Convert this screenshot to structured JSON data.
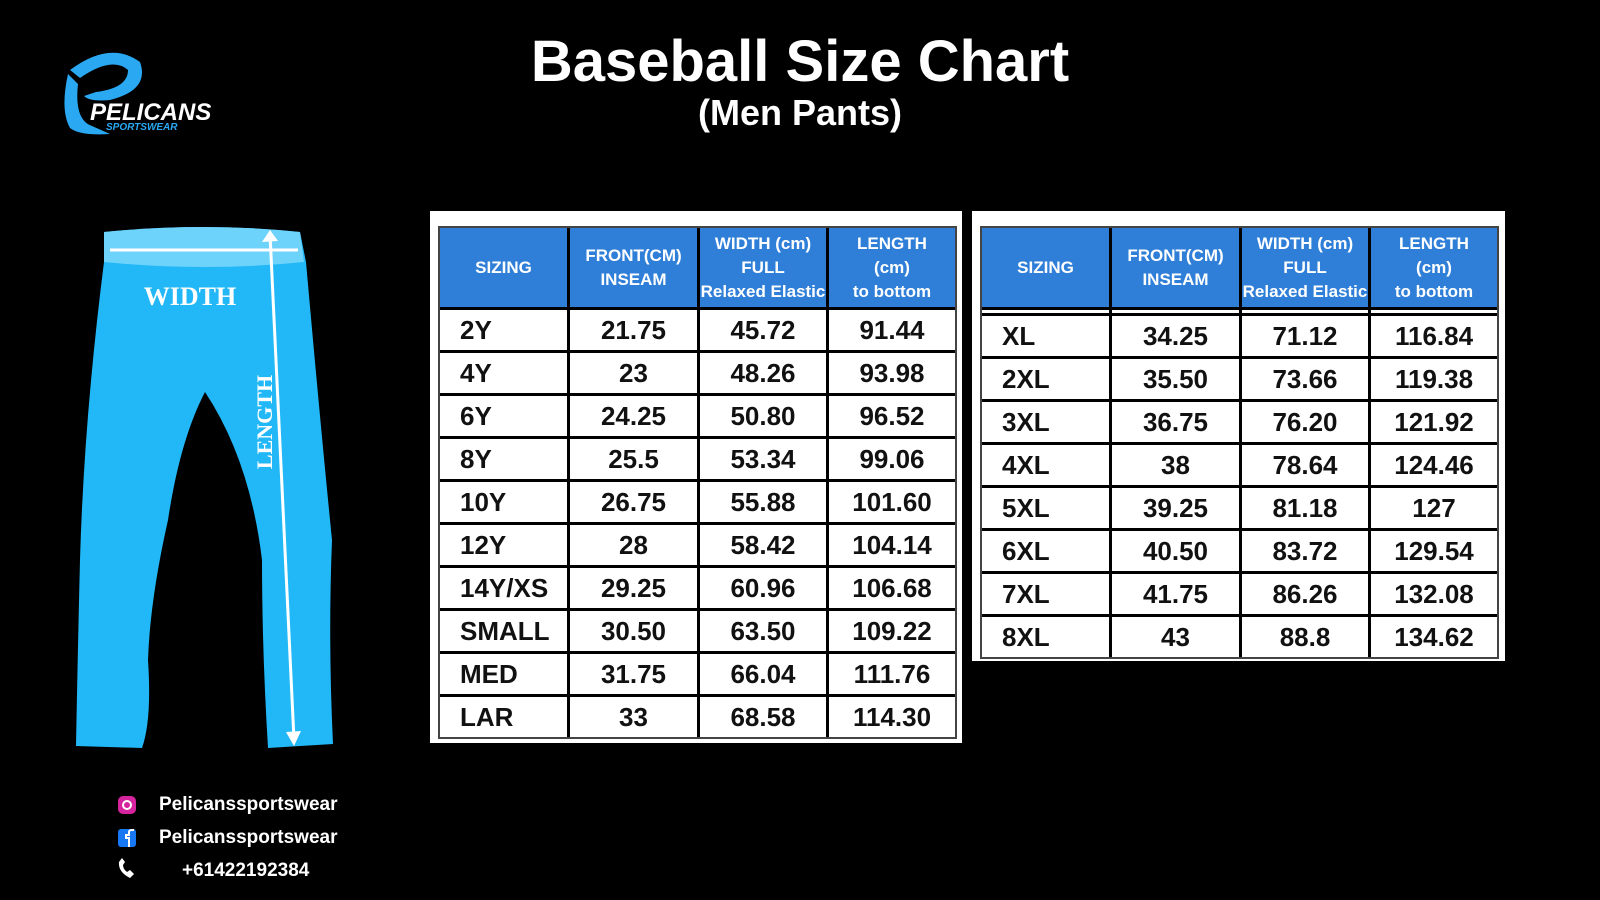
{
  "logo": {
    "name": "PELICANS",
    "tagline": "SPORTSWEAR"
  },
  "header": {
    "title": "Baseball Size Chart",
    "subtitle": "(Men Pants)"
  },
  "illustration": {
    "width_label": "WIDTH",
    "length_label": "LENGTH"
  },
  "tables": [
    {
      "columns": [
        [
          "SIZING"
        ],
        [
          "FRONT(CM)",
          "INSEAM"
        ],
        [
          "WIDTH (cm)",
          "FULL",
          "Relaxed Elastic"
        ],
        [
          "LENGTH",
          "(cm)",
          "to bottom"
        ]
      ],
      "rows": [
        [
          "2Y",
          "21.75",
          "45.72",
          "91.44"
        ],
        [
          "4Y",
          "23",
          "48.26",
          "93.98"
        ],
        [
          "6Y",
          "24.25",
          "50.80",
          "96.52"
        ],
        [
          "8Y",
          "25.5",
          "53.34",
          "99.06"
        ],
        [
          "10Y",
          "26.75",
          "55.88",
          "101.60"
        ],
        [
          "12Y",
          "28",
          "58.42",
          "104.14"
        ],
        [
          "14Y/XS",
          "29.25",
          "60.96",
          "106.68"
        ],
        [
          "SMALL",
          "30.50",
          "63.50",
          "109.22"
        ],
        [
          "MED",
          "31.75",
          "66.04",
          "111.76"
        ],
        [
          "LAR",
          "33",
          "68.58",
          "114.30"
        ]
      ]
    },
    {
      "columns": [
        [
          "SIZING"
        ],
        [
          "FRONT(CM)",
          "INSEAM"
        ],
        [
          "WIDTH (cm)",
          "FULL",
          "Relaxed Elastic"
        ],
        [
          "LENGTH",
          "(cm)",
          "to bottom"
        ]
      ],
      "rows": [
        [
          "XL",
          "34.25",
          "71.12",
          "116.84"
        ],
        [
          "2XL",
          "35.50",
          "73.66",
          "119.38"
        ],
        [
          "3XL",
          "36.75",
          "76.20",
          "121.92"
        ],
        [
          "4XL",
          "38",
          "78.64",
          "124.46"
        ],
        [
          "5XL",
          "39.25",
          "81.18",
          "127"
        ],
        [
          "6XL",
          "40.50",
          "83.72",
          "129.54"
        ],
        [
          "7XL",
          "41.75",
          "86.26",
          "132.08"
        ],
        [
          "8XL",
          "43",
          "88.8",
          "134.62"
        ]
      ]
    }
  ],
  "contacts": [
    "Pelicanssportswear",
    "Pelicanssportswear",
    "+61422192384"
  ]
}
